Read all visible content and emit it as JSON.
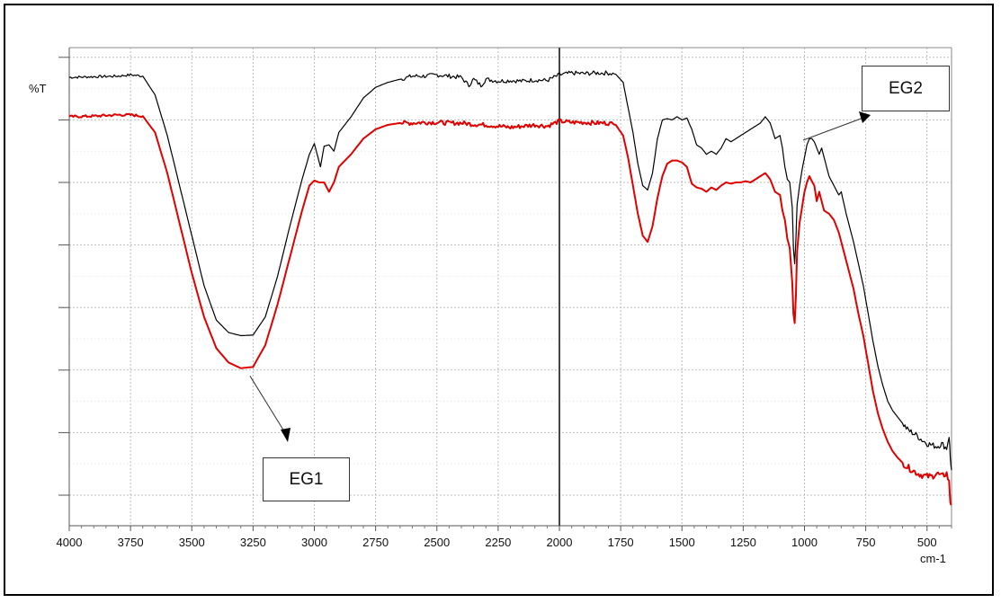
{
  "chart_data": {
    "type": "line",
    "ylabel": "%T",
    "xunit": "cm-1",
    "xlim": [
      4000,
      400
    ],
    "xticks": [
      4000,
      3750,
      3500,
      3250,
      3000,
      2750,
      2500,
      2250,
      2000,
      1750,
      1500,
      1250,
      1000,
      750,
      500
    ],
    "yticks_unlabeled": [
      0,
      1,
      2,
      3,
      4,
      5,
      6,
      7
    ],
    "ylim": [
      0,
      7.6
    ],
    "grid": true,
    "x_reversed": true,
    "marker_line_x": 2000,
    "series": [
      {
        "name": "EG2",
        "color": "#000000",
        "points": [
          [
            4000,
            6.68
          ],
          [
            3900,
            6.69
          ],
          [
            3800,
            6.7
          ],
          [
            3750,
            6.72
          ],
          [
            3700,
            6.7
          ],
          [
            3650,
            6.4
          ],
          [
            3600,
            5.75
          ],
          [
            3550,
            4.95
          ],
          [
            3500,
            4.15
          ],
          [
            3450,
            3.35
          ],
          [
            3400,
            2.8
          ],
          [
            3350,
            2.6
          ],
          [
            3300,
            2.55
          ],
          [
            3250,
            2.56
          ],
          [
            3200,
            2.85
          ],
          [
            3150,
            3.5
          ],
          [
            3100,
            4.3
          ],
          [
            3050,
            5.05
          ],
          [
            3020,
            5.45
          ],
          [
            3000,
            5.62
          ],
          [
            2985,
            5.4
          ],
          [
            2975,
            5.25
          ],
          [
            2960,
            5.58
          ],
          [
            2940,
            5.6
          ],
          [
            2920,
            5.5
          ],
          [
            2900,
            5.8
          ],
          [
            2850,
            6.05
          ],
          [
            2800,
            6.35
          ],
          [
            2750,
            6.52
          ],
          [
            2700,
            6.6
          ],
          [
            2650,
            6.65
          ],
          [
            2600,
            6.7
          ],
          [
            2550,
            6.7
          ],
          [
            2500,
            6.72
          ],
          [
            2450,
            6.7
          ],
          [
            2400,
            6.68
          ],
          [
            2370,
            6.55
          ],
          [
            2350,
            6.65
          ],
          [
            2320,
            6.55
          ],
          [
            2300,
            6.65
          ],
          [
            2250,
            6.62
          ],
          [
            2200,
            6.63
          ],
          [
            2150,
            6.62
          ],
          [
            2100,
            6.64
          ],
          [
            2050,
            6.63
          ],
          [
            2000,
            6.72
          ],
          [
            1950,
            6.75
          ],
          [
            1900,
            6.74
          ],
          [
            1850,
            6.75
          ],
          [
            1800,
            6.75
          ],
          [
            1770,
            6.73
          ],
          [
            1740,
            6.6
          ],
          [
            1720,
            6.2
          ],
          [
            1700,
            5.8
          ],
          [
            1680,
            5.3
          ],
          [
            1660,
            4.95
          ],
          [
            1640,
            4.88
          ],
          [
            1620,
            5.15
          ],
          [
            1600,
            5.7
          ],
          [
            1580,
            6.0
          ],
          [
            1560,
            6.02
          ],
          [
            1540,
            6.0
          ],
          [
            1520,
            6.05
          ],
          [
            1500,
            6.0
          ],
          [
            1480,
            6.03
          ],
          [
            1460,
            5.85
          ],
          [
            1440,
            5.6
          ],
          [
            1420,
            5.55
          ],
          [
            1400,
            5.45
          ],
          [
            1380,
            5.5
          ],
          [
            1360,
            5.45
          ],
          [
            1340,
            5.55
          ],
          [
            1320,
            5.7
          ],
          [
            1300,
            5.65
          ],
          [
            1280,
            5.7
          ],
          [
            1260,
            5.75
          ],
          [
            1240,
            5.8
          ],
          [
            1220,
            5.85
          ],
          [
            1200,
            5.9
          ],
          [
            1180,
            5.95
          ],
          [
            1160,
            6.05
          ],
          [
            1140,
            5.95
          ],
          [
            1120,
            5.7
          ],
          [
            1100,
            5.75
          ],
          [
            1090,
            5.55
          ],
          [
            1080,
            5.25
          ],
          [
            1070,
            5.05
          ],
          [
            1060,
            5.0
          ],
          [
            1050,
            4.6
          ],
          [
            1045,
            3.95
          ],
          [
            1040,
            3.7
          ],
          [
            1035,
            4.1
          ],
          [
            1030,
            4.65
          ],
          [
            1020,
            4.95
          ],
          [
            1010,
            5.2
          ],
          [
            1000,
            5.4
          ],
          [
            990,
            5.6
          ],
          [
            980,
            5.7
          ],
          [
            970,
            5.7
          ],
          [
            960,
            5.65
          ],
          [
            950,
            5.55
          ],
          [
            940,
            5.45
          ],
          [
            930,
            5.55
          ],
          [
            920,
            5.4
          ],
          [
            900,
            5.1
          ],
          [
            880,
            4.95
          ],
          [
            860,
            4.8
          ],
          [
            850,
            4.85
          ],
          [
            830,
            4.5
          ],
          [
            800,
            4.05
          ],
          [
            780,
            3.7
          ],
          [
            760,
            3.35
          ],
          [
            740,
            2.9
          ],
          [
            720,
            2.45
          ],
          [
            700,
            2.05
          ],
          [
            680,
            1.75
          ],
          [
            660,
            1.5
          ],
          [
            640,
            1.35
          ],
          [
            620,
            1.25
          ],
          [
            600,
            1.15
          ],
          [
            580,
            1.05
          ],
          [
            560,
            1.0
          ],
          [
            540,
            0.95
          ],
          [
            520,
            0.88
          ],
          [
            500,
            0.83
          ],
          [
            480,
            0.8
          ],
          [
            460,
            0.78
          ],
          [
            440,
            0.82
          ],
          [
            420,
            0.75
          ],
          [
            410,
            0.95
          ],
          [
            405,
            0.6
          ],
          [
            400,
            0.4
          ]
        ]
      },
      {
        "name": "EG1",
        "color": "#e00000",
        "points": [
          [
            4000,
            6.05
          ],
          [
            3900,
            6.06
          ],
          [
            3800,
            6.08
          ],
          [
            3750,
            6.08
          ],
          [
            3700,
            6.06
          ],
          [
            3650,
            5.8
          ],
          [
            3600,
            5.15
          ],
          [
            3550,
            4.35
          ],
          [
            3500,
            3.55
          ],
          [
            3450,
            2.85
          ],
          [
            3400,
            2.35
          ],
          [
            3350,
            2.12
          ],
          [
            3300,
            2.03
          ],
          [
            3250,
            2.05
          ],
          [
            3200,
            2.4
          ],
          [
            3150,
            3.05
          ],
          [
            3100,
            3.8
          ],
          [
            3050,
            4.55
          ],
          [
            3020,
            4.95
          ],
          [
            3000,
            5.03
          ],
          [
            2980,
            5.0
          ],
          [
            2960,
            5.0
          ],
          [
            2940,
            4.85
          ],
          [
            2920,
            5.0
          ],
          [
            2900,
            5.25
          ],
          [
            2850,
            5.45
          ],
          [
            2800,
            5.7
          ],
          [
            2750,
            5.85
          ],
          [
            2700,
            5.92
          ],
          [
            2650,
            5.95
          ],
          [
            2600,
            5.95
          ],
          [
            2550,
            5.96
          ],
          [
            2500,
            5.96
          ],
          [
            2450,
            5.95
          ],
          [
            2400,
            5.95
          ],
          [
            2350,
            5.93
          ],
          [
            2300,
            5.92
          ],
          [
            2250,
            5.9
          ],
          [
            2200,
            5.88
          ],
          [
            2150,
            5.9
          ],
          [
            2100,
            5.92
          ],
          [
            2050,
            5.9
          ],
          [
            2000,
            5.98
          ],
          [
            1950,
            5.96
          ],
          [
            1900,
            5.96
          ],
          [
            1850,
            5.95
          ],
          [
            1800,
            5.95
          ],
          [
            1770,
            5.92
          ],
          [
            1740,
            5.75
          ],
          [
            1720,
            5.4
          ],
          [
            1700,
            4.95
          ],
          [
            1680,
            4.5
          ],
          [
            1660,
            4.15
          ],
          [
            1640,
            4.05
          ],
          [
            1620,
            4.3
          ],
          [
            1600,
            4.75
          ],
          [
            1580,
            5.1
          ],
          [
            1560,
            5.3
          ],
          [
            1540,
            5.35
          ],
          [
            1520,
            5.35
          ],
          [
            1500,
            5.32
          ],
          [
            1480,
            5.25
          ],
          [
            1460,
            4.98
          ],
          [
            1440,
            4.92
          ],
          [
            1420,
            4.9
          ],
          [
            1400,
            4.85
          ],
          [
            1380,
            4.92
          ],
          [
            1360,
            4.88
          ],
          [
            1340,
            4.95
          ],
          [
            1320,
            5.0
          ],
          [
            1300,
            4.98
          ],
          [
            1280,
            5.0
          ],
          [
            1260,
            5.0
          ],
          [
            1240,
            5.02
          ],
          [
            1220,
            5.0
          ],
          [
            1200,
            5.05
          ],
          [
            1180,
            5.1
          ],
          [
            1160,
            5.15
          ],
          [
            1140,
            5.05
          ],
          [
            1120,
            4.85
          ],
          [
            1100,
            4.8
          ],
          [
            1090,
            4.55
          ],
          [
            1080,
            4.4
          ],
          [
            1070,
            4.1
          ],
          [
            1060,
            3.95
          ],
          [
            1050,
            3.4
          ],
          [
            1045,
            2.9
          ],
          [
            1040,
            2.75
          ],
          [
            1035,
            3.2
          ],
          [
            1030,
            3.9
          ],
          [
            1020,
            4.35
          ],
          [
            1010,
            4.6
          ],
          [
            1000,
            4.85
          ],
          [
            990,
            5.0
          ],
          [
            980,
            5.1
          ],
          [
            970,
            5.02
          ],
          [
            960,
            4.95
          ],
          [
            950,
            4.7
          ],
          [
            940,
            4.85
          ],
          [
            930,
            4.7
          ],
          [
            920,
            4.55
          ],
          [
            900,
            4.5
          ],
          [
            880,
            4.4
          ],
          [
            860,
            4.2
          ],
          [
            850,
            4.05
          ],
          [
            830,
            3.75
          ],
          [
            800,
            3.3
          ],
          [
            780,
            2.9
          ],
          [
            760,
            2.55
          ],
          [
            740,
            2.1
          ],
          [
            720,
            1.65
          ],
          [
            700,
            1.3
          ],
          [
            680,
            1.05
          ],
          [
            660,
            0.85
          ],
          [
            640,
            0.7
          ],
          [
            620,
            0.6
          ],
          [
            600,
            0.52
          ],
          [
            580,
            0.45
          ],
          [
            560,
            0.4
          ],
          [
            540,
            0.35
          ],
          [
            520,
            0.32
          ],
          [
            500,
            0.3
          ],
          [
            480,
            0.3
          ],
          [
            460,
            0.35
          ],
          [
            440,
            0.3
          ],
          [
            420,
            0.35
          ],
          [
            410,
            0.2
          ],
          [
            405,
            -0.1
          ],
          [
            400,
            -0.15
          ]
        ]
      }
    ],
    "annotations": [
      {
        "label": "EG1",
        "points_to": [
          3270,
          2.05
        ]
      },
      {
        "label": "EG2",
        "points_to": [
          1070,
          5.8
        ]
      }
    ]
  }
}
